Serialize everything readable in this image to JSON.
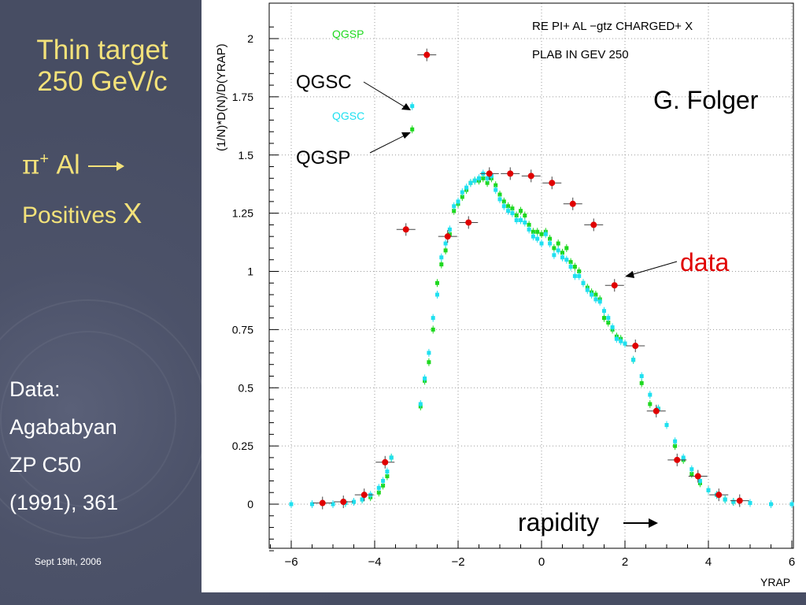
{
  "slide": {
    "title_line1": "Thin target",
    "title_line2": "250 GeV/c",
    "reaction_pi": "π",
    "reaction_sup": "+",
    "reaction_target": " Al",
    "reaction_positives": "Positives ",
    "reaction_x": "X",
    "data_ref": [
      "Data:",
      "Agababyan",
      "ZP C50",
      "(1991), 361"
    ],
    "date": "Sept 19th, 2006"
  },
  "colors": {
    "title": "#f3e27a",
    "data": "#e00000",
    "qgsp": "#1fd81f",
    "qgsc": "#1fe0f0",
    "background": "#4a5066"
  },
  "chart_data": {
    "type": "scatter",
    "title_lines": [
      "RE   PI+ AL  −gtz CHARGED+ X",
      "PLAB IN GEV   250"
    ],
    "xlabel": "YRAP",
    "ylabel": "(1/N)*D(N)/D(YRAP)",
    "xlim": [
      -6.6,
      6
    ],
    "ylim": [
      -0.2,
      2.15
    ],
    "x_ticks": [
      -6,
      -4,
      -2,
      0,
      2,
      4,
      6
    ],
    "y_ticks": [
      0,
      0.25,
      0.5,
      0.75,
      1,
      1.25,
      1.5,
      1.75,
      2
    ],
    "grid": true,
    "legend": [
      {
        "name": "QGSP",
        "color": "#1fd81f"
      },
      {
        "name": "QGSC",
        "color": "#1fe0f0"
      }
    ],
    "annotations": {
      "qgsc": "QGSC",
      "qgsp": "QGSP",
      "author": "G. Folger",
      "data": "data",
      "rapidity": "rapidity"
    },
    "series": [
      {
        "name": "data",
        "marker": "circle",
        "color": "#e00000",
        "x": [
          -5.25,
          -4.75,
          -4.25,
          -3.75,
          -3.25,
          -2.75,
          -2.25,
          -1.75,
          -1.25,
          -0.75,
          -0.25,
          0.25,
          0.75,
          1.25,
          1.75,
          2.25,
          2.75,
          3.25,
          3.75,
          4.25,
          4.75
        ],
        "y": [
          0.005,
          0.01,
          0.04,
          0.18,
          1.18,
          1.93,
          1.15,
          1.21,
          1.42,
          1.42,
          1.41,
          1.38,
          1.29,
          1.2,
          0.94,
          0.68,
          0.4,
          0.19,
          0.12,
          0.04,
          0.015
        ]
      },
      {
        "name": "QGSP",
        "marker": "square",
        "color": "#1fd81f",
        "x": [
          -6.0,
          -5.5,
          -5.0,
          -4.7,
          -4.5,
          -4.3,
          -4.1,
          -3.9,
          -3.8,
          -3.7,
          -3.6,
          -3.1,
          -2.9,
          -2.8,
          -2.7,
          -2.6,
          -2.5,
          -2.4,
          -2.3,
          -2.2,
          -2.1,
          -2.0,
          -1.9,
          -1.8,
          -1.7,
          -1.6,
          -1.5,
          -1.4,
          -1.3,
          -1.2,
          -1.1,
          -1.0,
          -0.9,
          -0.8,
          -0.7,
          -0.6,
          -0.5,
          -0.4,
          -0.3,
          -0.2,
          -0.1,
          0.0,
          0.1,
          0.2,
          0.3,
          0.4,
          0.5,
          0.6,
          0.7,
          0.8,
          0.9,
          1.0,
          1.1,
          1.2,
          1.3,
          1.4,
          1.5,
          1.6,
          1.7,
          1.8,
          1.9,
          2.0,
          2.2,
          2.4,
          2.6,
          2.8,
          3.0,
          3.2,
          3.4,
          3.6,
          3.8,
          4.0,
          4.2,
          4.4,
          4.6,
          5.0,
          5.5,
          6.0
        ],
        "y": [
          0.0,
          0.0,
          0.0,
          0.005,
          0.01,
          0.02,
          0.03,
          0.05,
          0.08,
          0.12,
          0.2,
          1.61,
          0.42,
          0.53,
          0.61,
          0.75,
          0.95,
          1.03,
          1.09,
          1.16,
          1.26,
          1.29,
          1.32,
          1.35,
          1.38,
          1.39,
          1.39,
          1.4,
          1.38,
          1.4,
          1.37,
          1.33,
          1.3,
          1.28,
          1.27,
          1.24,
          1.26,
          1.24,
          1.2,
          1.17,
          1.17,
          1.16,
          1.17,
          1.14,
          1.1,
          1.12,
          1.08,
          1.1,
          1.04,
          1.02,
          1.0,
          0.95,
          0.93,
          0.91,
          0.9,
          0.88,
          0.8,
          0.78,
          0.75,
          0.72,
          0.71,
          0.69,
          0.62,
          0.52,
          0.43,
          0.41,
          0.34,
          0.25,
          0.19,
          0.13,
          0.09,
          0.06,
          0.04,
          0.02,
          0.01,
          0.005,
          0.0,
          0.0
        ]
      },
      {
        "name": "QGSC",
        "marker": "square",
        "color": "#1fe0f0",
        "x": [
          -6.0,
          -5.5,
          -5.0,
          -4.7,
          -4.5,
          -4.3,
          -4.1,
          -3.9,
          -3.8,
          -3.7,
          -3.6,
          -3.1,
          -2.9,
          -2.8,
          -2.7,
          -2.6,
          -2.5,
          -2.4,
          -2.3,
          -2.2,
          -2.1,
          -2.0,
          -1.9,
          -1.8,
          -1.7,
          -1.6,
          -1.5,
          -1.4,
          -1.3,
          -1.2,
          -1.1,
          -1.0,
          -0.9,
          -0.8,
          -0.7,
          -0.6,
          -0.5,
          -0.4,
          -0.3,
          -0.2,
          -0.1,
          0.0,
          0.1,
          0.2,
          0.3,
          0.4,
          0.5,
          0.6,
          0.7,
          0.8,
          0.9,
          1.0,
          1.1,
          1.2,
          1.3,
          1.4,
          1.5,
          1.6,
          1.7,
          1.8,
          1.9,
          2.0,
          2.2,
          2.4,
          2.6,
          2.8,
          3.0,
          3.2,
          3.4,
          3.6,
          3.8,
          4.0,
          4.2,
          4.4,
          4.6,
          5.0,
          5.5,
          6.0
        ],
        "y": [
          0.0,
          0.0,
          0.0,
          0.005,
          0.01,
          0.02,
          0.04,
          0.07,
          0.1,
          0.14,
          0.2,
          1.71,
          0.43,
          0.54,
          0.65,
          0.8,
          0.9,
          1.06,
          1.12,
          1.18,
          1.28,
          1.3,
          1.34,
          1.36,
          1.38,
          1.39,
          1.4,
          1.42,
          1.4,
          1.41,
          1.35,
          1.31,
          1.28,
          1.26,
          1.25,
          1.22,
          1.22,
          1.21,
          1.18,
          1.15,
          1.14,
          1.12,
          1.16,
          1.12,
          1.07,
          1.09,
          1.06,
          1.05,
          1.02,
          0.98,
          0.98,
          0.95,
          0.92,
          0.9,
          0.88,
          0.87,
          0.83,
          0.8,
          0.76,
          0.71,
          0.7,
          0.69,
          0.62,
          0.55,
          0.47,
          0.41,
          0.34,
          0.27,
          0.2,
          0.15,
          0.1,
          0.06,
          0.04,
          0.02,
          0.01,
          0.005,
          0.0,
          0.0
        ]
      }
    ]
  }
}
